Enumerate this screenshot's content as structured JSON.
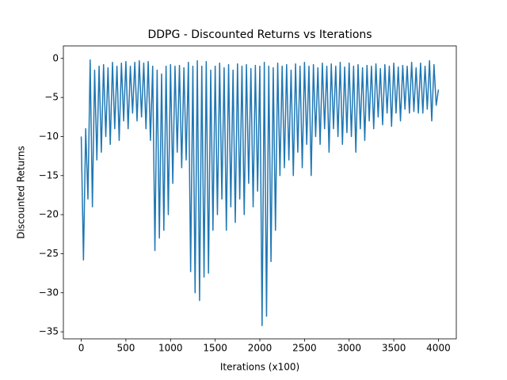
{
  "chart_data": {
    "type": "line",
    "title": "DDPG - Discounted Returns vs Iterations",
    "xlabel": "Iterations (x100)",
    "ylabel": "Discounted Returns",
    "xlim": [
      -200,
      4200
    ],
    "ylim": [
      -35.9,
      1.6
    ],
    "xticks": [
      0,
      500,
      1000,
      1500,
      2000,
      2500,
      3000,
      3500,
      4000
    ],
    "yticks": [
      {
        "value": 0,
        "label": "0"
      },
      {
        "value": -5,
        "label": "−5"
      },
      {
        "value": -10,
        "label": "−10"
      },
      {
        "value": -15,
        "label": "−15"
      },
      {
        "value": -20,
        "label": "−20"
      },
      {
        "value": -25,
        "label": "−25"
      },
      {
        "value": -30,
        "label": "−30"
      },
      {
        "value": -35,
        "label": "−35"
      }
    ],
    "x": [
      0,
      25,
      50,
      75,
      100,
      125,
      150,
      175,
      200,
      225,
      250,
      275,
      300,
      325,
      350,
      375,
      400,
      425,
      450,
      475,
      500,
      525,
      550,
      575,
      600,
      625,
      650,
      675,
      700,
      725,
      750,
      775,
      800,
      825,
      850,
      875,
      900,
      925,
      950,
      975,
      1000,
      1025,
      1050,
      1075,
      1100,
      1125,
      1150,
      1175,
      1200,
      1225,
      1250,
      1275,
      1300,
      1325,
      1350,
      1375,
      1400,
      1425,
      1450,
      1475,
      1500,
      1525,
      1550,
      1575,
      1600,
      1625,
      1650,
      1675,
      1700,
      1725,
      1750,
      1775,
      1800,
      1825,
      1850,
      1875,
      1900,
      1925,
      1950,
      1975,
      2000,
      2025,
      2050,
      2075,
      2100,
      2125,
      2150,
      2175,
      2200,
      2225,
      2250,
      2275,
      2300,
      2325,
      2350,
      2375,
      2400,
      2425,
      2450,
      2475,
      2500,
      2525,
      2550,
      2575,
      2600,
      2625,
      2650,
      2675,
      2700,
      2725,
      2750,
      2775,
      2800,
      2825,
      2850,
      2875,
      2900,
      2925,
      2950,
      2975,
      3000,
      3025,
      3050,
      3075,
      3100,
      3125,
      3150,
      3175,
      3200,
      3225,
      3250,
      3275,
      3300,
      3325,
      3350,
      3375,
      3400,
      3425,
      3450,
      3475,
      3500,
      3525,
      3550,
      3575,
      3600,
      3625,
      3650,
      3675,
      3700,
      3725,
      3750,
      3775,
      3800,
      3825,
      3850,
      3875,
      3900,
      3925,
      3950,
      3975,
      4000
    ],
    "series": [
      {
        "name": "returns",
        "color": "#1f77b4",
        "values": [
          -10,
          -25.8,
          -9,
          -18,
          -0.2,
          -19,
          -1.5,
          -13,
          -1,
          -12,
          -0.8,
          -10,
          -1.2,
          -11,
          -0.5,
          -9,
          -1,
          -10.5,
          -0.6,
          -8,
          -0.4,
          -9,
          -1,
          -7,
          -0.5,
          -8,
          -0.3,
          -7.5,
          -0.6,
          -9,
          -0.4,
          -10.5,
          -1,
          -24.6,
          -1.5,
          -23,
          -2,
          -22,
          -1,
          -20,
          -0.8,
          -16,
          -1,
          -12,
          -0.9,
          -14,
          -1.2,
          -13,
          -0.5,
          -27.3,
          -1,
          -30,
          -0.3,
          -31,
          -1,
          -28,
          -0.4,
          -27.5,
          -1.5,
          -22,
          -1,
          -20,
          -0.6,
          -18,
          -1.2,
          -22,
          -0.8,
          -19,
          -1.5,
          -21,
          -0.7,
          -18,
          -1,
          -20,
          -0.8,
          -16,
          -1.3,
          -19,
          -0.9,
          -17,
          -1,
          -34.2,
          -0.5,
          -33,
          -1,
          -26,
          -1.2,
          -22,
          -0.6,
          -15,
          -1,
          -14,
          -0.8,
          -13,
          -1.5,
          -15,
          -0.7,
          -12,
          -1,
          -14,
          -0.5,
          -11,
          -1,
          -15,
          -0.8,
          -10,
          -1.2,
          -11,
          -0.6,
          -9,
          -1,
          -12,
          -0.7,
          -9,
          -1,
          -10,
          -0.5,
          -11,
          -1.1,
          -9.5,
          -0.6,
          -10,
          -1,
          -12,
          -0.8,
          -9,
          -1.2,
          -10.5,
          -0.9,
          -8,
          -1,
          -9,
          -0.7,
          -7.5,
          -1.3,
          -8.5,
          -0.8,
          -7,
          -1,
          -8.7,
          -0.6,
          -7,
          -1.1,
          -8,
          -0.9,
          -6.5,
          -1,
          -7,
          -0.5,
          -6.8,
          -1.2,
          -7,
          -0.6,
          -7,
          -1,
          -6.5,
          -0.3,
          -8,
          -0.8,
          -6,
          -4
        ]
      }
    ]
  }
}
